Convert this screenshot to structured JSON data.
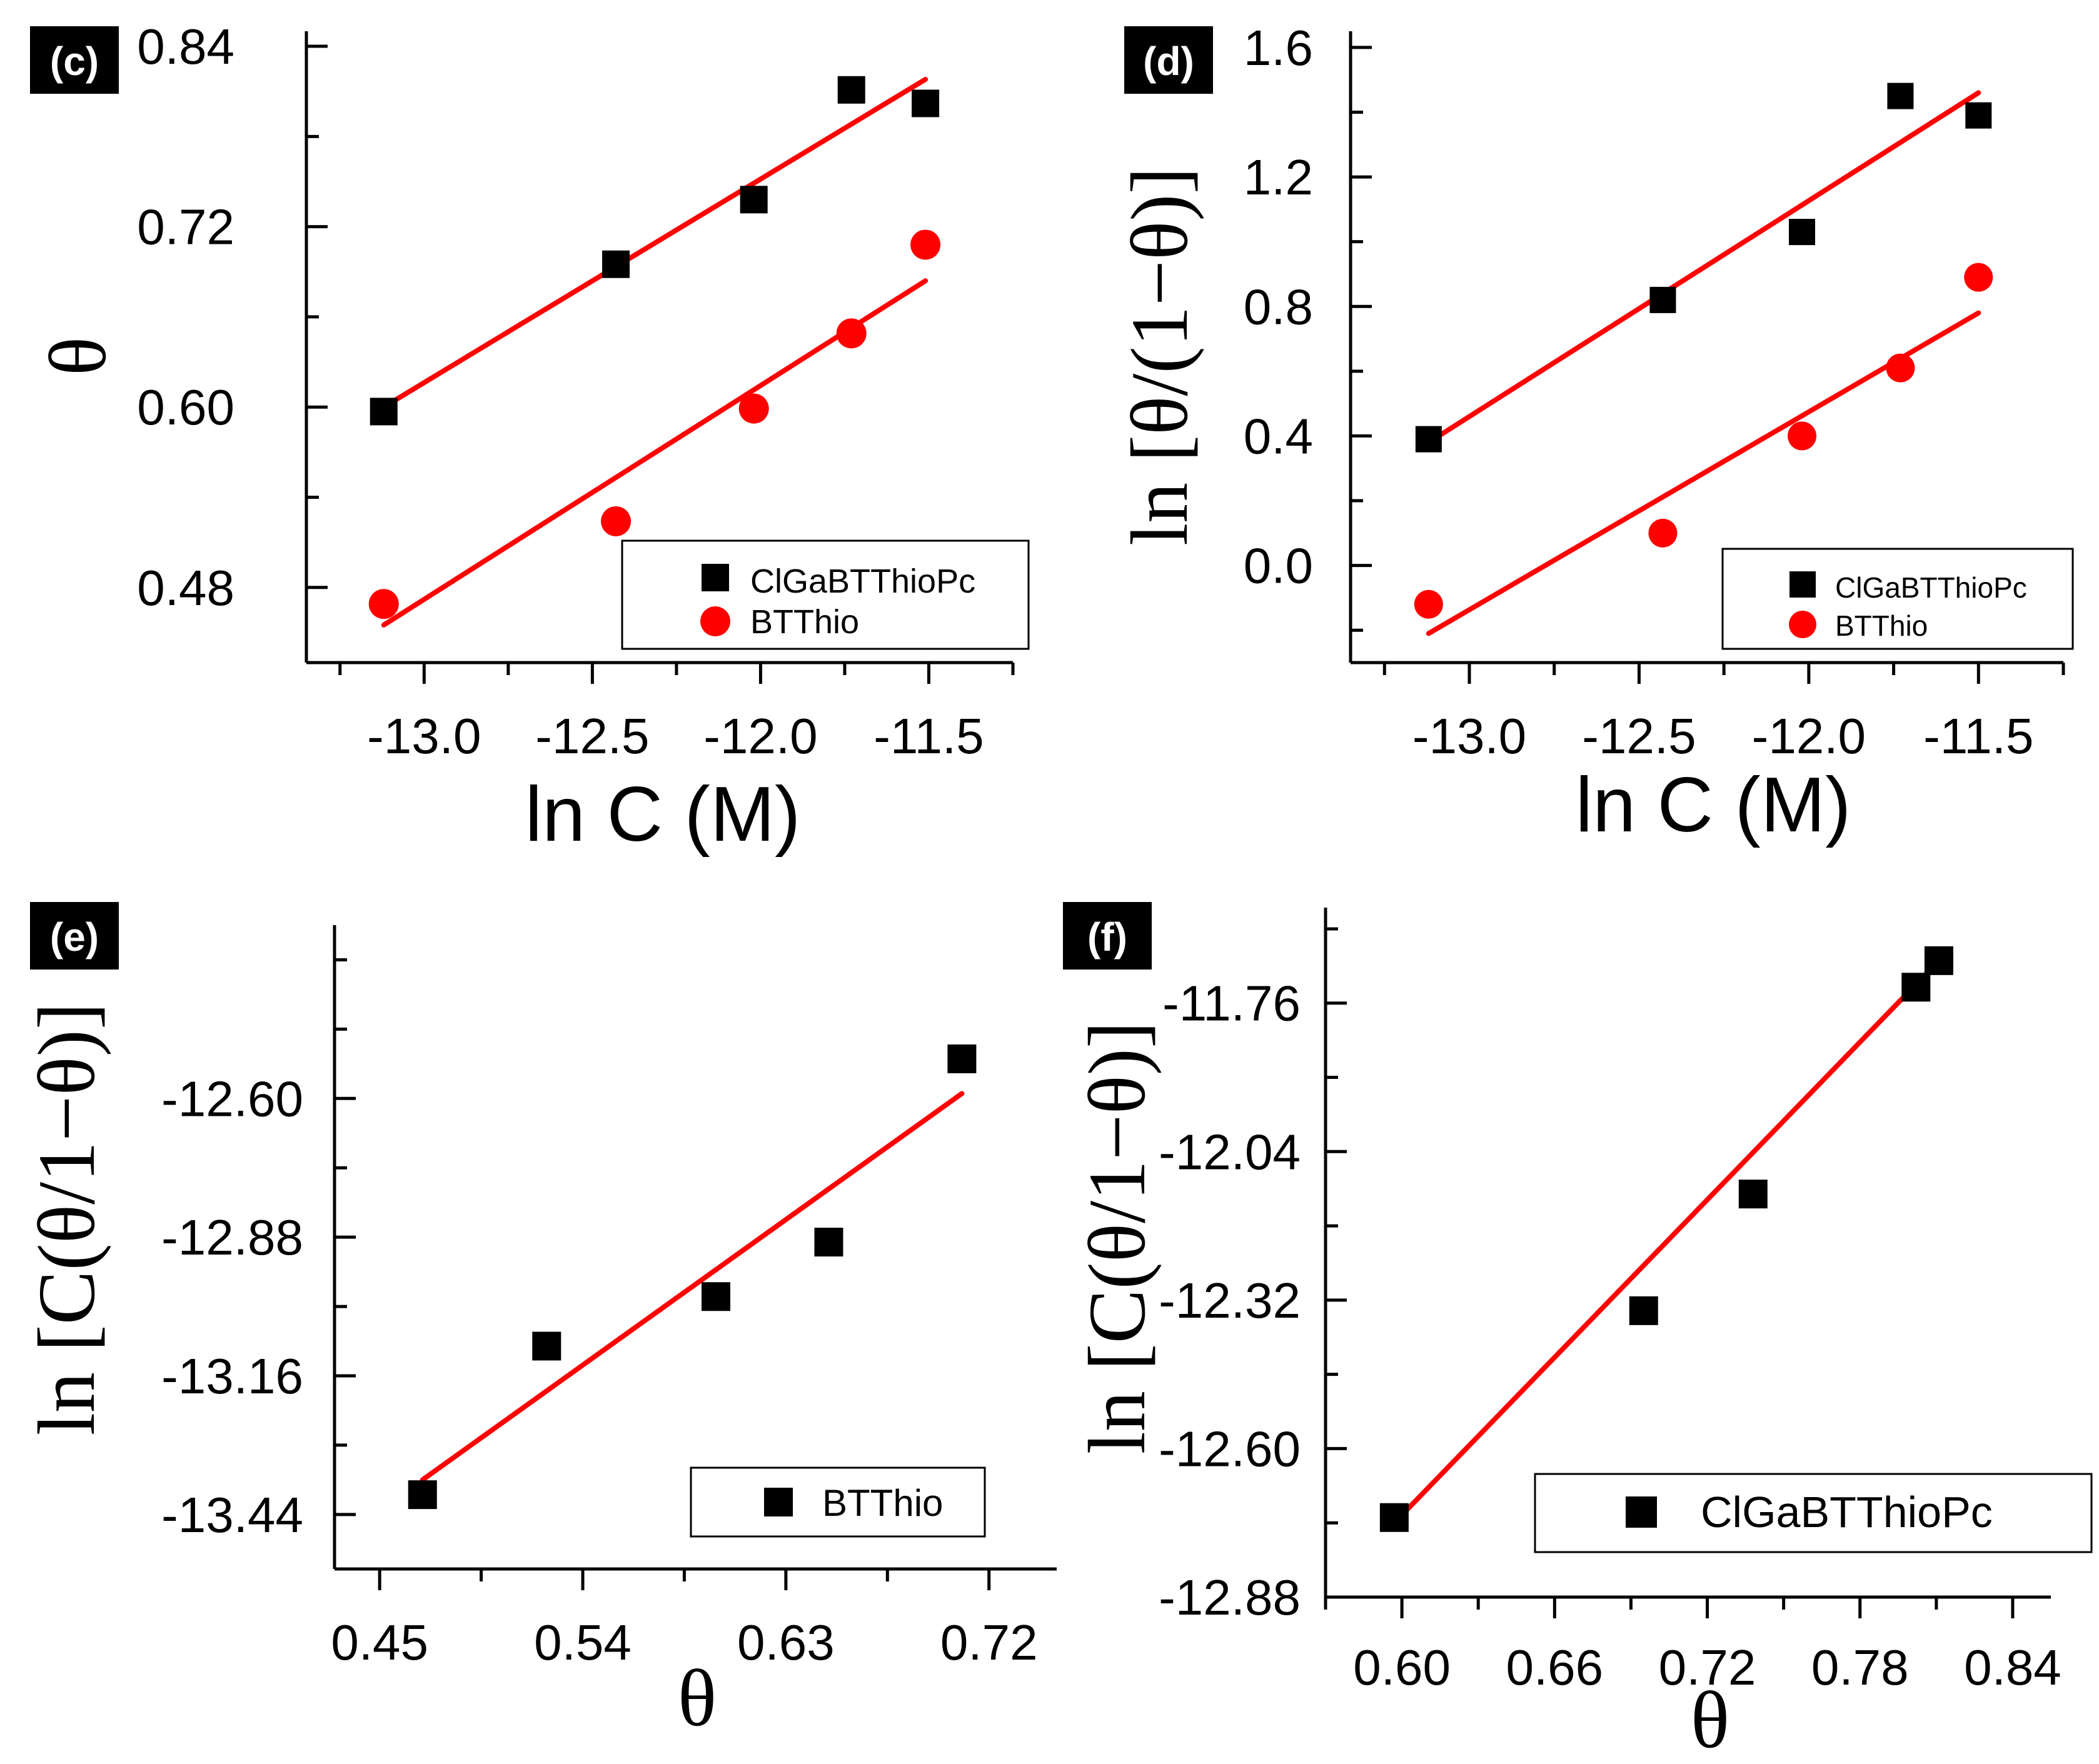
{
  "figure": {
    "background": "#ffffff"
  },
  "colors": {
    "axis": "#000000",
    "fit": "#ff0000",
    "series_black": "#000000",
    "series_red": "#ff0000",
    "tag_bg": "#000000",
    "tag_text": "#ffffff"
  },
  "chart_data": [
    {
      "id": "c",
      "panel_label": "(c)",
      "type": "scatter",
      "xlabel": "ln C (M)",
      "ylabel": "θ",
      "xlim": [
        -13.35,
        -11.25
      ],
      "ylim": [
        0.43,
        0.85
      ],
      "xticks": [
        -13.0,
        -12.5,
        -12.0,
        -11.5
      ],
      "xtick_labels": [
        "-13.0",
        "-12.5",
        "-12.0",
        "-11.5"
      ],
      "yticks": [
        0.48,
        0.6,
        0.72,
        0.84
      ],
      "ytick_labels": [
        "0.48",
        "0.60",
        "0.72",
        "0.84"
      ],
      "legend_position": "bottom-right",
      "series": [
        {
          "name": "ClGaBTThioPc",
          "marker": "square",
          "color": "#000000",
          "x": [
            -13.12,
            -12.43,
            -12.02,
            -11.73,
            -11.51
          ],
          "y": [
            0.597,
            0.695,
            0.738,
            0.811,
            0.802
          ],
          "fit": {
            "x": [
              -13.12,
              -11.51
            ],
            "y": [
              0.6,
              0.818
            ]
          }
        },
        {
          "name": "BTThio",
          "marker": "circle",
          "color": "#ff0000",
          "x": [
            -13.12,
            -12.43,
            -12.02,
            -11.73,
            -11.51
          ],
          "y": [
            0.469,
            0.524,
            0.599,
            0.649,
            0.708
          ],
          "fit": {
            "x": [
              -13.12,
              -11.51
            ],
            "y": [
              0.455,
              0.684
            ]
          }
        }
      ]
    },
    {
      "id": "d",
      "panel_label": "(d)",
      "type": "scatter",
      "xlabel": "ln C (M)",
      "ylabel": "ln [θ/(1−θ)]",
      "xlim": [
        -13.35,
        -11.25
      ],
      "ylim": [
        -0.3,
        1.65
      ],
      "xticks": [
        -13.0,
        -12.5,
        -12.0,
        -11.5
      ],
      "xtick_labels": [
        "-13.0",
        "-12.5",
        "-12.0",
        "-11.5"
      ],
      "yticks": [
        0.0,
        0.4,
        0.8,
        1.2,
        1.6
      ],
      "ytick_labels": [
        "0.0",
        "0.4",
        "0.8",
        "1.2",
        "1.6"
      ],
      "legend_position": "bottom-right",
      "series": [
        {
          "name": "ClGaBTThioPc",
          "marker": "square",
          "color": "#000000",
          "x": [
            -13.12,
            -12.43,
            -12.02,
            -11.73,
            -11.5
          ],
          "y": [
            0.39,
            0.82,
            1.03,
            1.45,
            1.39
          ],
          "fit": {
            "x": [
              -13.12,
              -11.5
            ],
            "y": [
              0.38,
              1.46
            ]
          }
        },
        {
          "name": "BTThio",
          "marker": "circle",
          "color": "#ff0000",
          "x": [
            -13.12,
            -12.43,
            -12.02,
            -11.73,
            -11.5
          ],
          "y": [
            -0.12,
            0.1,
            0.4,
            0.61,
            0.89
          ],
          "fit": {
            "x": [
              -13.12,
              -11.5
            ],
            "y": [
              -0.21,
              0.78
            ]
          }
        }
      ]
    },
    {
      "id": "e",
      "panel_label": "(e)",
      "type": "scatter",
      "xlabel": "θ",
      "ylabel": "ln [C(θ/1−θ)]",
      "xlim": [
        0.43,
        0.75
      ],
      "ylim": [
        -13.55,
        -12.25
      ],
      "xticks": [
        0.45,
        0.54,
        0.63,
        0.72
      ],
      "xtick_labels": [
        "0.45",
        "0.54",
        "0.63",
        "0.72"
      ],
      "yticks": [
        -13.44,
        -13.16,
        -12.88,
        -12.6
      ],
      "ytick_labels": [
        "-13.44",
        "-13.16",
        "-12.88",
        "-12.60"
      ],
      "legend_position": "bottom-right",
      "series": [
        {
          "name": "BTThio",
          "marker": "square",
          "color": "#000000",
          "x": [
            0.469,
            0.524,
            0.599,
            0.649,
            0.708
          ],
          "y": [
            -13.4,
            -13.1,
            -13.0,
            -12.89,
            -12.52
          ],
          "fit": {
            "x": [
              0.469,
              0.708
            ],
            "y": [
              -13.37,
              -12.59
            ]
          }
        }
      ]
    },
    {
      "id": "f",
      "panel_label": "(f)",
      "type": "scatter",
      "xlabel": "θ",
      "ylabel": "ln [C(θ/1−θ)]",
      "xlim": [
        0.57,
        0.855
      ],
      "ylim": [
        -12.88,
        -11.58
      ],
      "xticks": [
        0.6,
        0.66,
        0.72,
        0.78,
        0.84
      ],
      "xtick_labels": [
        "0.60",
        "0.66",
        "0.72",
        "0.78",
        "0.84"
      ],
      "yticks": [
        -12.88,
        -12.6,
        -12.32,
        -12.04,
        -11.76
      ],
      "ytick_labels": [
        "-12.88",
        "-12.60",
        "-12.32",
        "-12.04",
        "-11.76"
      ],
      "legend_position": "bottom-right",
      "series": [
        {
          "name": "ClGaBTThioPc",
          "marker": "square",
          "color": "#000000",
          "x": [
            0.597,
            0.695,
            0.738,
            0.802,
            0.811
          ],
          "y": [
            -12.73,
            -12.34,
            -12.12,
            -11.73,
            -11.68
          ],
          "fit": {
            "x": [
              0.597,
              0.811
            ],
            "y": [
              -12.74,
              -11.68
            ]
          }
        }
      ]
    }
  ]
}
